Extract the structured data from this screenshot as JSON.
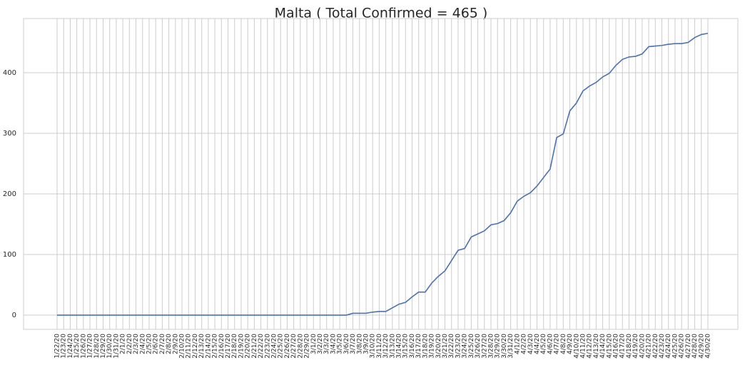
{
  "chart_data": {
    "type": "line",
    "title": "Malta ( Total Confirmed = 465 )",
    "categories": [
      "1/22/20",
      "1/23/20",
      "1/24/20",
      "1/25/20",
      "1/26/20",
      "1/27/20",
      "1/28/20",
      "1/29/20",
      "1/30/20",
      "1/31/20",
      "2/1/20",
      "2/2/20",
      "2/3/20",
      "2/4/20",
      "2/5/20",
      "2/6/20",
      "2/7/20",
      "2/8/20",
      "2/9/20",
      "2/10/20",
      "2/11/20",
      "2/12/20",
      "2/13/20",
      "2/14/20",
      "2/15/20",
      "2/16/20",
      "2/17/20",
      "2/18/20",
      "2/19/20",
      "2/20/20",
      "2/21/20",
      "2/22/20",
      "2/23/20",
      "2/24/20",
      "2/25/20",
      "2/26/20",
      "2/27/20",
      "2/28/20",
      "2/29/20",
      "3/1/20",
      "3/2/20",
      "3/3/20",
      "3/4/20",
      "3/5/20",
      "3/6/20",
      "3/7/20",
      "3/8/20",
      "3/9/20",
      "3/10/20",
      "3/11/20",
      "3/12/20",
      "3/13/20",
      "3/14/20",
      "3/15/20",
      "3/16/20",
      "3/17/20",
      "3/18/20",
      "3/19/20",
      "3/20/20",
      "3/21/20",
      "3/22/20",
      "3/23/20",
      "3/24/20",
      "3/25/20",
      "3/26/20",
      "3/27/20",
      "3/28/20",
      "3/29/20",
      "3/30/20",
      "3/31/20",
      "4/1/20",
      "4/2/20",
      "4/3/20",
      "4/4/20",
      "4/5/20",
      "4/6/20",
      "4/7/20",
      "4/8/20",
      "4/9/20",
      "4/10/20",
      "4/11/20",
      "4/12/20",
      "4/13/20",
      "4/14/20",
      "4/15/20",
      "4/16/20",
      "4/17/20",
      "4/18/20",
      "4/19/20",
      "4/20/20",
      "4/21/20",
      "4/22/20",
      "4/23/20",
      "4/24/20",
      "4/25/20",
      "4/26/20",
      "4/27/20",
      "4/28/20",
      "4/29/20",
      "4/30/20"
    ],
    "values": [
      0,
      0,
      0,
      0,
      0,
      0,
      0,
      0,
      0,
      0,
      0,
      0,
      0,
      0,
      0,
      0,
      0,
      0,
      0,
      0,
      0,
      0,
      0,
      0,
      0,
      0,
      0,
      0,
      0,
      0,
      0,
      0,
      0,
      0,
      0,
      0,
      0,
      0,
      0,
      0,
      0,
      0,
      0,
      0,
      0,
      3,
      3,
      3,
      5,
      6,
      6,
      12,
      18,
      21,
      30,
      38,
      38,
      53,
      64,
      73,
      90,
      107,
      110,
      129,
      134,
      139,
      149,
      151,
      156,
      169,
      188,
      196,
      202,
      213,
      227,
      241,
      293,
      299,
      337,
      350,
      370,
      378,
      384,
      393,
      399,
      412,
      422,
      426,
      427,
      431,
      443,
      444,
      445,
      447,
      448,
      448,
      450,
      458,
      463,
      465
    ],
    "color": "#4c72b0",
    "ylim": [
      -23.5,
      489.4
    ],
    "yticks": [
      0,
      100,
      200,
      300,
      400
    ],
    "grid": true
  }
}
